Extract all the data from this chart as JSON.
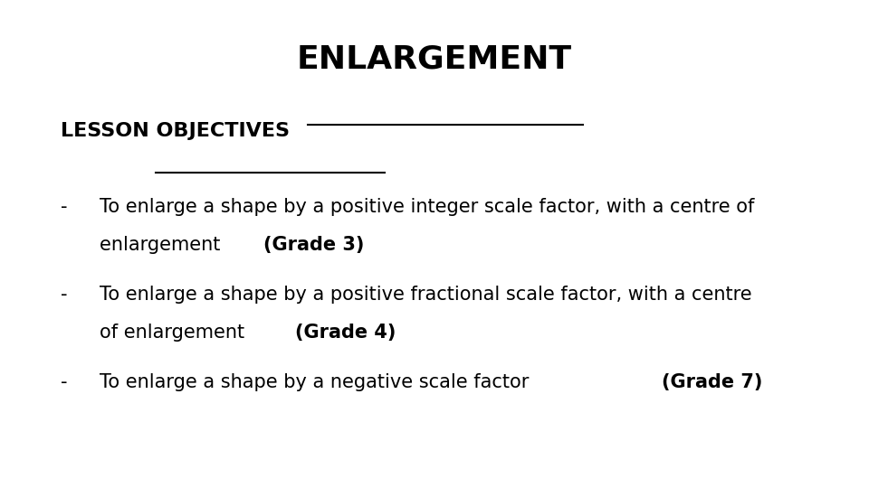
{
  "title": "ENLARGEMENT",
  "subtitle": "LESSON OBJECTIVES",
  "bg_color": "#ffffff",
  "text_color": "#000000",
  "title_fontsize": 26,
  "subtitle_fontsize": 16,
  "body_fontsize": 15,
  "dash": "-",
  "bullet1_line1": "To enlarge a shape by a positive integer scale factor, with a centre of",
  "bullet1_line2_normal": "enlargement ",
  "bullet1_line2_bold": "(Grade 3)",
  "bullet2_line1": "To enlarge a shape by a positive fractional scale factor, with a centre",
  "bullet2_line2_normal": "of enlargement ",
  "bullet2_line2_bold": "(Grade 4)",
  "bullet3_normal": "To enlarge a shape by a negative scale factor ",
  "bullet3_bold": "(Grade 7)"
}
